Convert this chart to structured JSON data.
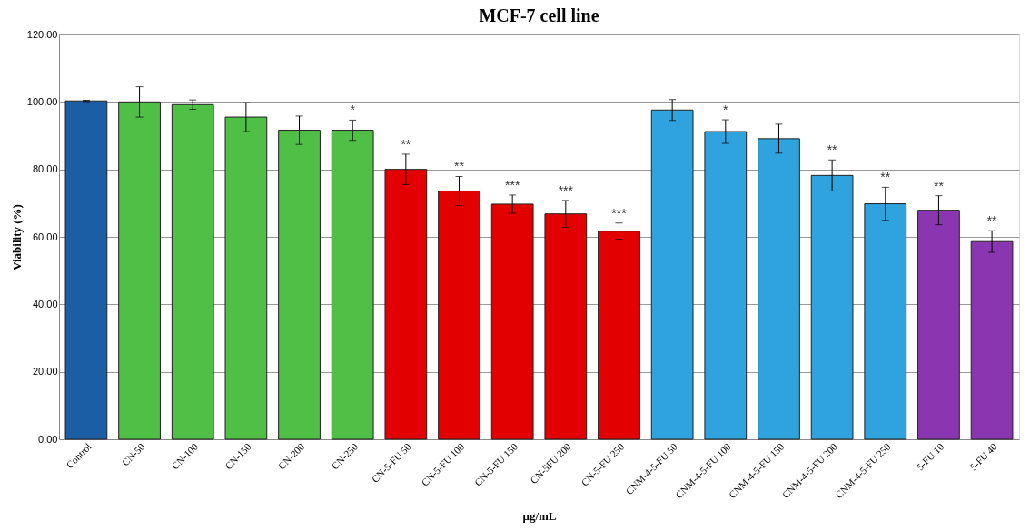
{
  "chart_data": {
    "type": "bar",
    "title": "MCF-7 cell line",
    "xlabel": "μg/mL",
    "ylabel": "Viability (%)",
    "categories": [
      "Control",
      "CN-50",
      "CN-100",
      "CN-150",
      "CN-200",
      "CN-250",
      "CN-5-FU 50",
      "CN-5-FU 100",
      "CN-5-FU 150",
      "CN-5FU 200",
      "CN-5-FU 250",
      "CNM-4-5-FU 50",
      "CNM-4-5-FU 100",
      "CNM-4-5-FU 150",
      "CNM-4-5-FU 200",
      "CNM-4-5-FU 250",
      "5-FU 10",
      "5-FU 40"
    ],
    "values": [
      100.3,
      100.0,
      99.2,
      95.5,
      91.6,
      91.6,
      80.0,
      73.6,
      69.7,
      66.8,
      61.7,
      97.6,
      91.2,
      89.1,
      78.2,
      69.8,
      67.9,
      58.6
    ],
    "errors": [
      0.2,
      4.5,
      1.4,
      4.3,
      4.2,
      3.0,
      4.5,
      4.3,
      2.7,
      4.0,
      2.4,
      3.1,
      3.5,
      4.3,
      4.6,
      4.9,
      4.3,
      3.2
    ],
    "colors": [
      "#1b5ea6",
      "#4fbf45",
      "#4fbf45",
      "#4fbf45",
      "#4fbf45",
      "#4fbf45",
      "#e30000",
      "#e30000",
      "#e30000",
      "#e30000",
      "#e30000",
      "#2ea3de",
      "#2ea3de",
      "#2ea3de",
      "#2ea3de",
      "#2ea3de",
      "#8a36b0",
      "#8a36b0"
    ],
    "ylim": [
      0,
      120
    ],
    "yticks": [
      {
        "value": 0,
        "label": "0.00"
      },
      {
        "value": 20,
        "label": "20.00"
      },
      {
        "value": 40,
        "label": "40.00"
      },
      {
        "value": 60,
        "label": "60.00"
      },
      {
        "value": 80,
        "label": "80.00"
      },
      {
        "value": 100,
        "label": "100.00"
      },
      {
        "value": 120,
        "label": "120.00"
      }
    ],
    "grid": "y",
    "annotations": [
      {
        "text": "*",
        "x": "CN-250",
        "y": 91.6
      },
      {
        "text": "**",
        "x": "CN-5-FU 50",
        "y": 80.0
      },
      {
        "text": "**",
        "x": "CN-5-FU 100",
        "y": 73.6
      },
      {
        "text": "***",
        "x": "CN-5-FU 150",
        "y": 69.7
      },
      {
        "text": "***",
        "x": "CN-5FU 200",
        "y": 66.8
      },
      {
        "text": "***",
        "x": "CN-5-FU 250",
        "y": 61.7
      },
      {
        "text": "*",
        "x": "CNM-4-5-FU 100",
        "y": 91.2
      },
      {
        "text": "**",
        "x": "CNM-4-5-FU 200",
        "y": 78.2
      },
      {
        "text": "**",
        "x": "CNM-4-5-FU 250",
        "y": 69.8
      },
      {
        "text": "**",
        "x": "5-FU 10",
        "y": 67.9
      },
      {
        "text": "**",
        "x": "5-FU 40",
        "y": 58.6
      }
    ]
  }
}
